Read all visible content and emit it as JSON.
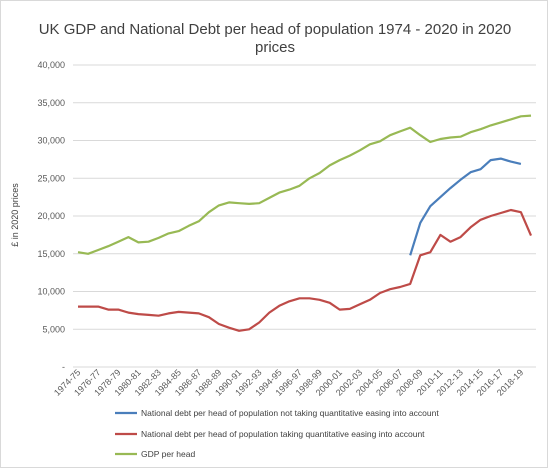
{
  "chart_data": {
    "type": "line",
    "title_lines": [
      "UK GDP and National Debt per head of population 1974 - 2020 in 2020",
      "prices"
    ],
    "ylabel": "£ in 2020 prices",
    "xlabel": "",
    "ylim": [
      0,
      40000
    ],
    "y_ticks": [
      0,
      5000,
      10000,
      15000,
      20000,
      25000,
      30000,
      35000,
      40000
    ],
    "y_tick_labels": [
      "-",
      "5,000",
      "10,000",
      "15,000",
      "20,000",
      "25,000",
      "30,000",
      "35,000",
      "40,000"
    ],
    "grid": true,
    "legend_position": "bottom",
    "x": [
      "1974-75",
      "1975-76",
      "1976-77",
      "1977-78",
      "1978-79",
      "1979-80",
      "1980-81",
      "1981-82",
      "1982-83",
      "1983-84",
      "1984-85",
      "1985-86",
      "1986-87",
      "1987-88",
      "1988-89",
      "1989-90",
      "1990-91",
      "1991-92",
      "1992-93",
      "1993-94",
      "1994-95",
      "1995-96",
      "1996-97",
      "1997-98",
      "1998-99",
      "1999-00",
      "2000-01",
      "2001-02",
      "2002-03",
      "2003-04",
      "2004-05",
      "2005-06",
      "2006-07",
      "2007-08",
      "2008-09",
      "2009-10",
      "2010-11",
      "2011-12",
      "2012-13",
      "2013-14",
      "2014-15",
      "2015-16",
      "2016-17",
      "2017-18",
      "2018-19",
      "2019-20"
    ],
    "x_tick_labels": [
      "1974-75",
      "1976-77",
      "1978-79",
      "1980-81",
      "1982-83",
      "1984-85",
      "1986-87",
      "1988-89",
      "1990-91",
      "1992-93",
      "1994-95",
      "1996-97",
      "1998-99",
      "2000-01",
      "2002-03",
      "2004-05",
      "2006-07",
      "2008-09",
      "2010-11",
      "2012-13",
      "2014-15",
      "2016-17",
      "2018-19"
    ],
    "series": [
      {
        "name": "National debt per head of population not taking quantitative easing into account",
        "color": "#4a7ebb",
        "values": [
          null,
          null,
          null,
          null,
          null,
          null,
          null,
          null,
          null,
          null,
          null,
          null,
          null,
          null,
          null,
          null,
          null,
          null,
          null,
          null,
          null,
          null,
          null,
          null,
          null,
          null,
          null,
          null,
          null,
          null,
          null,
          null,
          null,
          14800,
          19100,
          21300,
          22500,
          23700,
          24800,
          25800,
          26200,
          27400,
          27600,
          27200,
          26900,
          null
        ]
      },
      {
        "name": "National debt per head of population taking quantitative easing into account",
        "color": "#be4b48",
        "values": [
          8000,
          8000,
          8000,
          7600,
          7600,
          7200,
          7000,
          6900,
          6800,
          7100,
          7300,
          7200,
          7100,
          6600,
          5700,
          5200,
          4800,
          5000,
          5900,
          7200,
          8100,
          8700,
          9100,
          9100,
          8900,
          8500,
          7600,
          7700,
          8300,
          8900,
          9800,
          10300,
          10600,
          11000,
          14800,
          15200,
          17500,
          16600,
          17200,
          18500,
          19500,
          20000,
          20400,
          20800,
          20500,
          17400
        ]
      },
      {
        "name": "GDP per head",
        "color": "#98b954",
        "values": [
          15200,
          15000,
          15500,
          16000,
          16600,
          17200,
          16500,
          16600,
          17100,
          17700,
          18000,
          18700,
          19300,
          20500,
          21400,
          21800,
          21700,
          21600,
          21700,
          22400,
          23100,
          23500,
          24000,
          25000,
          25700,
          26700,
          27400,
          28000,
          28700,
          29500,
          29900,
          30700,
          31200,
          31700,
          30700,
          29800,
          30200,
          30400,
          30500,
          31100,
          31500,
          32000,
          32400,
          32800,
          33200,
          33300
        ]
      }
    ]
  }
}
